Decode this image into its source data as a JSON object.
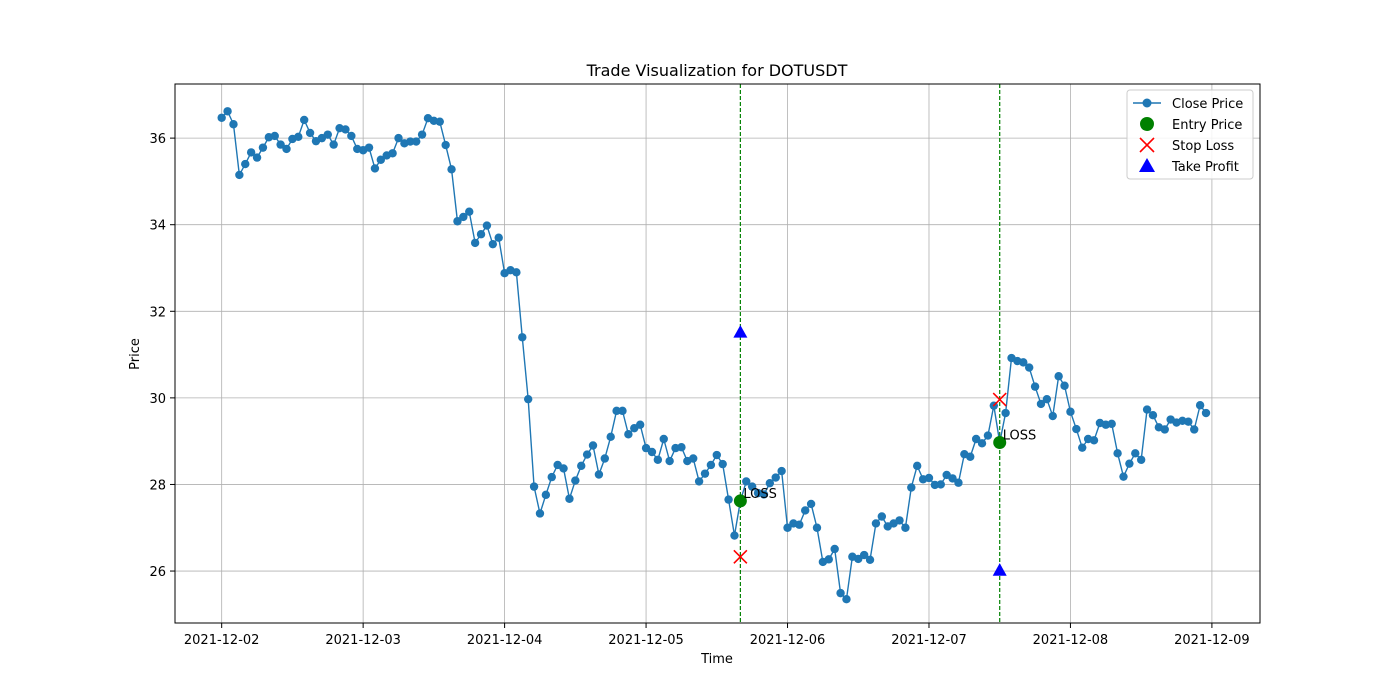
{
  "chart_data": {
    "type": "line",
    "title": "Trade Visualization for DOTUSDT",
    "xlabel": "Time",
    "ylabel": "Price",
    "x_tick_labels": [
      "2021-12-02",
      "2021-12-03",
      "2021-12-04",
      "2021-12-05",
      "2021-12-06",
      "2021-12-07",
      "2021-12-08",
      "2021-12-09"
    ],
    "y_ticks": [
      26,
      28,
      30,
      32,
      34,
      36
    ],
    "ylim": [
      24.8,
      37.25
    ],
    "xlim_days": [
      -0.33,
      7.34
    ],
    "grid": true,
    "legend_placement": "top-right",
    "legend": [
      "Close Price",
      "Entry Price",
      "Stop Loss",
      "Take Profit"
    ],
    "colors": {
      "line": "#1f77b4",
      "entry": "#008000",
      "stop": "#ff0000",
      "take": "#0000ff",
      "vline": "#008000",
      "grid": "#b0b0b0"
    },
    "series": [
      {
        "name": "Close Price",
        "start": "2021-12-02 00:00",
        "interval_hours": 1,
        "values": [
          36.47,
          36.62,
          36.32,
          35.15,
          35.4,
          35.67,
          35.55,
          35.78,
          36.02,
          36.05,
          35.85,
          35.75,
          35.98,
          36.03,
          36.42,
          36.12,
          35.93,
          36.0,
          36.08,
          35.85,
          36.23,
          36.2,
          36.05,
          35.75,
          35.72,
          35.78,
          35.3,
          35.5,
          35.6,
          35.65,
          36.0,
          35.88,
          35.92,
          35.92,
          36.08,
          36.46,
          36.4,
          36.38,
          35.84,
          35.28,
          34.08,
          34.18,
          34.3,
          33.58,
          33.78,
          33.98,
          33.55,
          33.7,
          32.88,
          32.95,
          32.9,
          31.4,
          29.97,
          27.95,
          27.33,
          27.76,
          28.17,
          28.45,
          28.37,
          27.67,
          28.09,
          28.43,
          28.69,
          28.9,
          28.23,
          28.6,
          29.1,
          29.7,
          29.7,
          29.16,
          29.3,
          29.38,
          28.84,
          28.75,
          28.57,
          29.05,
          28.54,
          28.84,
          28.86,
          28.54,
          28.6,
          28.07,
          28.25,
          28.45,
          28.68,
          28.47,
          27.65,
          26.82,
          27.62,
          28.07,
          27.95,
          27.8,
          27.77,
          28.03,
          28.16,
          28.31,
          27.0,
          27.1,
          27.07,
          27.4,
          27.55,
          27.0,
          26.21,
          26.27,
          26.51,
          25.49,
          25.35,
          26.33,
          26.28,
          26.37,
          26.26,
          27.1,
          27.26,
          27.03,
          27.1,
          27.17,
          27.0,
          27.93,
          28.43,
          28.12,
          28.15,
          27.99,
          28.0,
          28.22,
          28.14,
          28.04,
          28.7,
          28.64,
          29.05,
          28.95,
          29.13,
          29.82,
          28.97,
          29.65,
          30.92,
          30.85,
          30.82,
          30.7,
          30.26,
          29.86,
          29.97,
          29.58,
          30.5,
          30.28,
          29.68,
          29.28,
          28.85,
          29.05,
          29.02,
          29.42,
          29.38,
          29.4,
          28.72,
          28.18,
          28.48,
          28.72,
          28.57,
          29.73,
          29.6,
          29.32,
          29.27,
          29.5,
          29.43,
          29.47,
          29.45,
          29.27,
          29.83,
          29.65
        ]
      }
    ],
    "trades": [
      {
        "time": "2021-12-05 16:00",
        "entry": 27.62,
        "stop_loss": 26.33,
        "take_profit": 31.52,
        "result": "LOSS"
      },
      {
        "time": "2021-12-07 12:00",
        "entry": 28.97,
        "stop_loss": 29.96,
        "take_profit": 26.02,
        "result": "LOSS"
      }
    ]
  }
}
